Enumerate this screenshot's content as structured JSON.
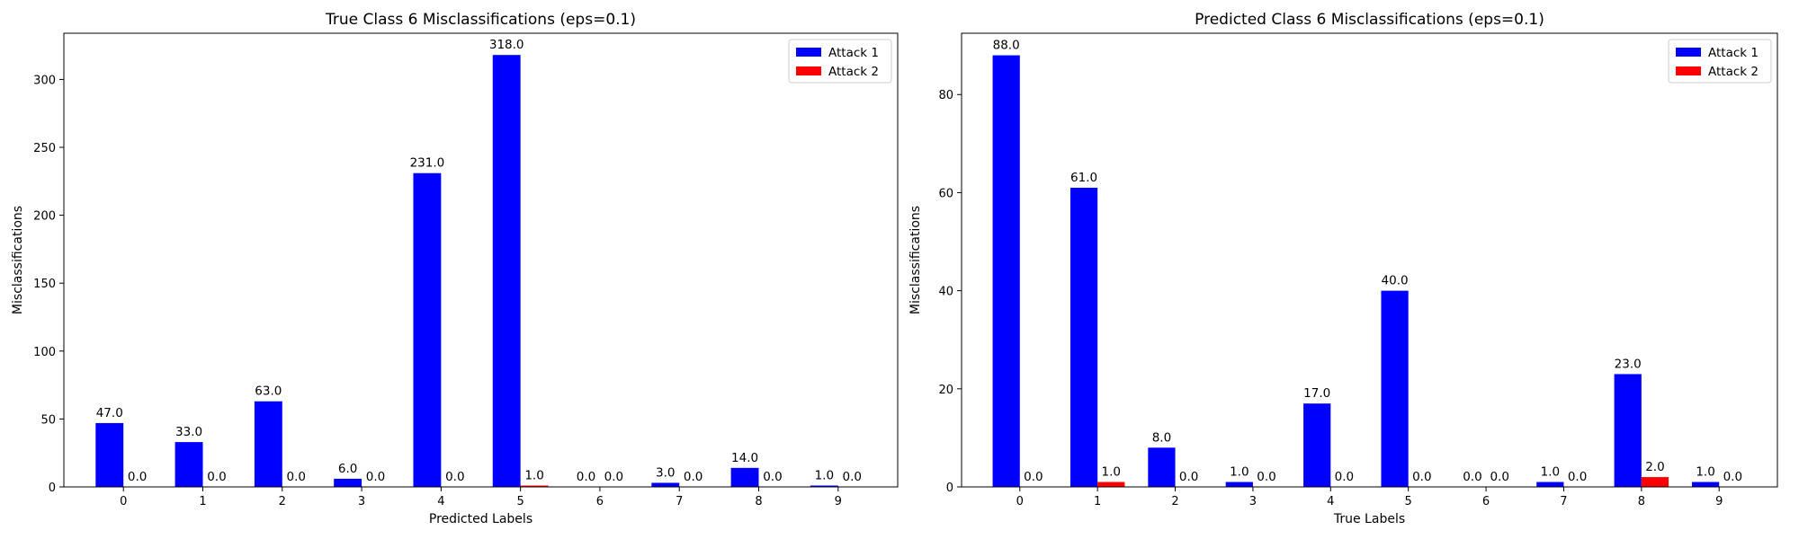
{
  "chart_data": [
    {
      "type": "bar",
      "title": "True Class 6 Misclassifications (eps=0.1)",
      "xlabel": "Predicted Labels",
      "ylabel": "Misclassifications",
      "categories": [
        "0",
        "1",
        "2",
        "3",
        "4",
        "5",
        "6",
        "7",
        "8",
        "9"
      ],
      "series": [
        {
          "name": "Attack 1",
          "color": "#0000ff",
          "values": [
            47,
            33,
            63,
            6,
            231,
            318,
            0,
            3,
            14,
            1
          ]
        },
        {
          "name": "Attack 2",
          "color": "#ff0000",
          "values": [
            0,
            0,
            0,
            0,
            0,
            1,
            0,
            0,
            0,
            0
          ]
        }
      ],
      "ylim": [
        0,
        334
      ],
      "yticks": [
        0,
        50,
        100,
        150,
        200,
        250,
        300
      ],
      "grid": false,
      "legend": "top-right"
    },
    {
      "type": "bar",
      "title": "Predicted Class 6 Misclassifications (eps=0.1)",
      "xlabel": "True Labels",
      "ylabel": "Misclassifications",
      "categories": [
        "0",
        "1",
        "2",
        "3",
        "4",
        "5",
        "6",
        "7",
        "8",
        "9"
      ],
      "series": [
        {
          "name": "Attack 1",
          "color": "#0000ff",
          "values": [
            88,
            61,
            8,
            1,
            17,
            40,
            0,
            1,
            23,
            1
          ]
        },
        {
          "name": "Attack 2",
          "color": "#ff0000",
          "values": [
            0,
            1,
            0,
            0,
            0,
            0,
            0,
            0,
            2,
            0
          ]
        }
      ],
      "ylim": [
        0,
        92.5
      ],
      "yticks": [
        0,
        20,
        40,
        60,
        80
      ],
      "grid": false,
      "legend": "top-right"
    }
  ]
}
